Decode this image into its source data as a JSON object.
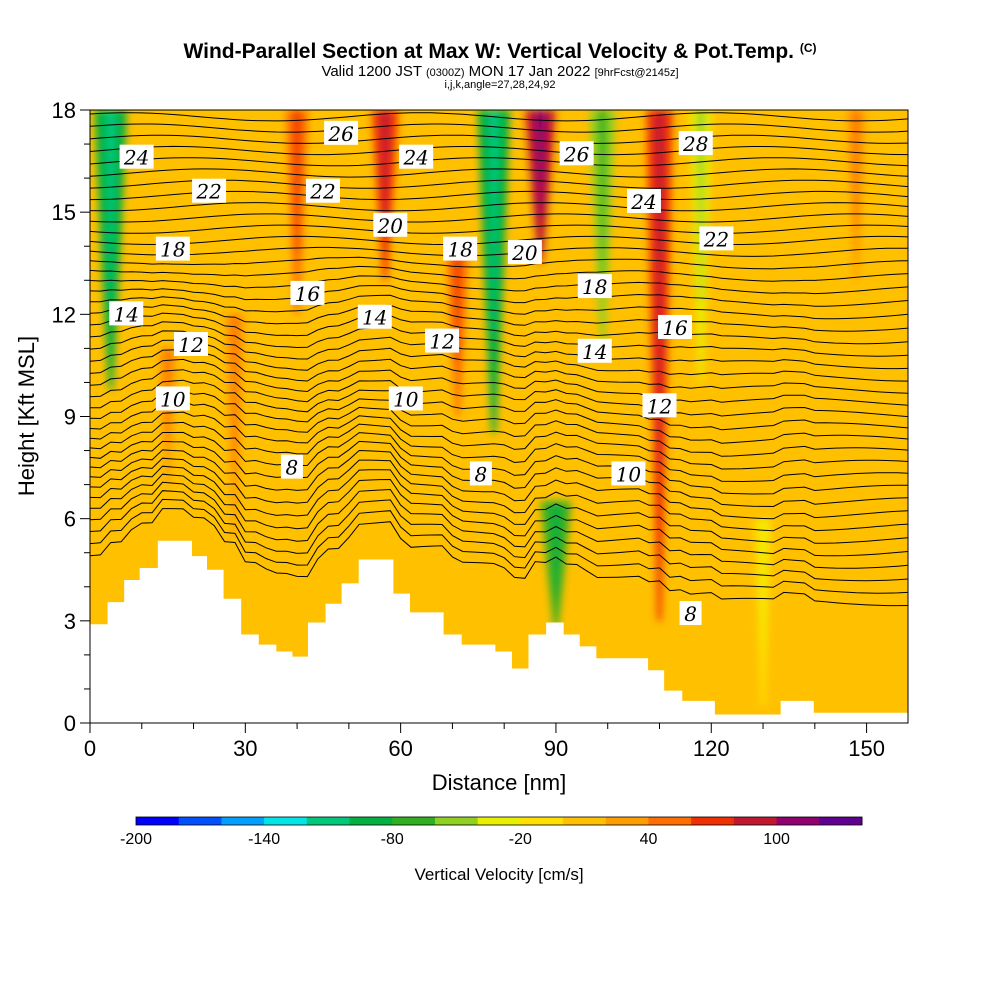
{
  "title": {
    "main": "Wind-Parallel Section at Max W: Vertical Velocity & Pot.Temp.",
    "copyright": "(C)",
    "valid_prefix": "Valid 1200 JST",
    "valid_zulu": "(0300Z)",
    "valid_date": "MON 17 Jan 2022",
    "forecast": "[9hrFcst@2145z]",
    "indices": "i,j,k,angle=27,28,24,92"
  },
  "axes": {
    "xlabel": "Distance [nm]",
    "ylabel": "Height [Kft MSL]"
  },
  "colorbar": {
    "title": "Vertical Velocity [cm/s]",
    "tick_labels": [
      "-200",
      "-140",
      "-80",
      "-20",
      "40",
      "100"
    ],
    "colors": [
      "#0000ff",
      "#0050ff",
      "#00a0ff",
      "#00e6e6",
      "#00c87a",
      "#00b040",
      "#30b020",
      "#90d020",
      "#e8f000",
      "#ffe000",
      "#ffc000",
      "#ff9c00",
      "#ff6e00",
      "#f03000",
      "#c01830",
      "#900070",
      "#600090"
    ]
  },
  "chart_data": {
    "type": "heatmap",
    "title": "Wind-Parallel Section at Max W: Vertical Velocity & Pot.Temp.",
    "xlabel": "Distance [nm]",
    "ylabel": "Height [Kft MSL]",
    "xlim": [
      0,
      158
    ],
    "ylim": [
      0,
      18
    ],
    "x_ticks": [
      "0",
      "30",
      "60",
      "90",
      "120",
      "150"
    ],
    "y_ticks": [
      "0",
      "3",
      "6",
      "9",
      "12",
      "15",
      "18"
    ],
    "x_tick_values": [
      0,
      30,
      60,
      90,
      120,
      150
    ],
    "y_tick_values": [
      0,
      3,
      6,
      9,
      12,
      15,
      18
    ],
    "colorbar_range": [
      -200,
      130
    ],
    "colorbar_step": 20,
    "terrain": [
      {
        "x": 0,
        "h": 2.9
      },
      {
        "x": 3.4,
        "h": 3.55
      },
      {
        "x": 6.6,
        "h": 4.2
      },
      {
        "x": 9.6,
        "h": 4.55
      },
      {
        "x": 13.1,
        "h": 5.35
      },
      {
        "x": 19.7,
        "h": 4.9
      },
      {
        "x": 22.6,
        "h": 4.5
      },
      {
        "x": 25.8,
        "h": 3.65
      },
      {
        "x": 29.2,
        "h": 2.6
      },
      {
        "x": 32.6,
        "h": 2.3
      },
      {
        "x": 36.0,
        "h": 2.1
      },
      {
        "x": 39.1,
        "h": 1.95
      },
      {
        "x": 42.1,
        "h": 2.95
      },
      {
        "x": 45.5,
        "h": 3.5
      },
      {
        "x": 48.6,
        "h": 4.1
      },
      {
        "x": 51.9,
        "h": 4.8
      },
      {
        "x": 58.6,
        "h": 3.8
      },
      {
        "x": 61.8,
        "h": 3.25
      },
      {
        "x": 68.3,
        "h": 2.6
      },
      {
        "x": 71.8,
        "h": 2.3
      },
      {
        "x": 78.3,
        "h": 2.1
      },
      {
        "x": 81.5,
        "h": 1.6
      },
      {
        "x": 84.7,
        "h": 2.6
      },
      {
        "x": 88.1,
        "h": 2.95
      },
      {
        "x": 91.5,
        "h": 2.6
      },
      {
        "x": 94.6,
        "h": 2.25
      },
      {
        "x": 97.8,
        "h": 1.9
      },
      {
        "x": 107.8,
        "h": 1.55
      },
      {
        "x": 110.9,
        "h": 0.95
      },
      {
        "x": 114.4,
        "h": 0.65
      },
      {
        "x": 120.7,
        "h": 0.25
      },
      {
        "x": 133.4,
        "h": 0.65
      },
      {
        "x": 139.8,
        "h": 0.3
      },
      {
        "x": 158,
        "h": 0.3
      }
    ],
    "updraft_bands": [
      {
        "x": 4,
        "w": -90,
        "top": 18,
        "bottom": 9.8
      },
      {
        "x": 15,
        "w": 20,
        "top": 11,
        "bottom": 7
      },
      {
        "x": 28,
        "w": 30,
        "top": 12,
        "bottom": 5.5
      },
      {
        "x": 40,
        "w": 40,
        "top": 18,
        "bottom": 12
      },
      {
        "x": 57,
        "w": 60,
        "top": 18,
        "bottom": 13
      },
      {
        "x": 71,
        "w": 40,
        "top": 14,
        "bottom": 9
      },
      {
        "x": 78,
        "w": -90,
        "top": 18,
        "bottom": 8.5
      },
      {
        "x": 87,
        "w": 80,
        "top": 18,
        "bottom": 13.5
      },
      {
        "x": 90,
        "w": -80,
        "top": 6.5,
        "bottom": 2.8
      },
      {
        "x": 99,
        "w": -60,
        "top": 18,
        "bottom": 11
      },
      {
        "x": 110,
        "w": 60,
        "top": 18,
        "bottom": 3
      },
      {
        "x": 118,
        "w": -40,
        "top": 18,
        "bottom": 10
      },
      {
        "x": 130,
        "w": -15,
        "top": 6,
        "bottom": 0.5
      },
      {
        "x": 148,
        "w": 25,
        "top": 18,
        "bottom": 13
      }
    ],
    "theta_contour_labels": [
      {
        "v": "24",
        "x": 9,
        "h": 16.6
      },
      {
        "v": "22",
        "x": 23,
        "h": 15.6
      },
      {
        "v": "18",
        "x": 16,
        "h": 13.9
      },
      {
        "v": "14",
        "x": 7,
        "h": 12.0
      },
      {
        "v": "12",
        "x": 19.5,
        "h": 11.1
      },
      {
        "v": "10",
        "x": 16,
        "h": 9.5
      },
      {
        "v": "26",
        "x": 48.5,
        "h": 17.3
      },
      {
        "v": "22",
        "x": 45,
        "h": 15.6
      },
      {
        "v": "24",
        "x": 63,
        "h": 16.6
      },
      {
        "v": "20",
        "x": 58,
        "h": 14.6
      },
      {
        "v": "16",
        "x": 42,
        "h": 12.6
      },
      {
        "v": "14",
        "x": 55,
        "h": 11.9
      },
      {
        "v": "18",
        "x": 71.5,
        "h": 13.9
      },
      {
        "v": "12",
        "x": 68,
        "h": 11.2
      },
      {
        "v": "10",
        "x": 61,
        "h": 9.5
      },
      {
        "v": "8",
        "x": 39,
        "h": 7.5
      },
      {
        "v": "8",
        "x": 75.5,
        "h": 7.3
      },
      {
        "v": "20",
        "x": 84,
        "h": 13.8
      },
      {
        "v": "26",
        "x": 94,
        "h": 16.7
      },
      {
        "v": "18",
        "x": 97.5,
        "h": 12.8
      },
      {
        "v": "14",
        "x": 97.5,
        "h": 10.9
      },
      {
        "v": "28",
        "x": 117,
        "h": 17.0
      },
      {
        "v": "24",
        "x": 107,
        "h": 15.3
      },
      {
        "v": "22",
        "x": 121,
        "h": 14.2
      },
      {
        "v": "16",
        "x": 113,
        "h": 11.6
      },
      {
        "v": "12",
        "x": 110,
        "h": 9.3
      },
      {
        "v": "10",
        "x": 104,
        "h": 7.3
      },
      {
        "v": "8",
        "x": 116,
        "h": 3.2
      }
    ]
  }
}
